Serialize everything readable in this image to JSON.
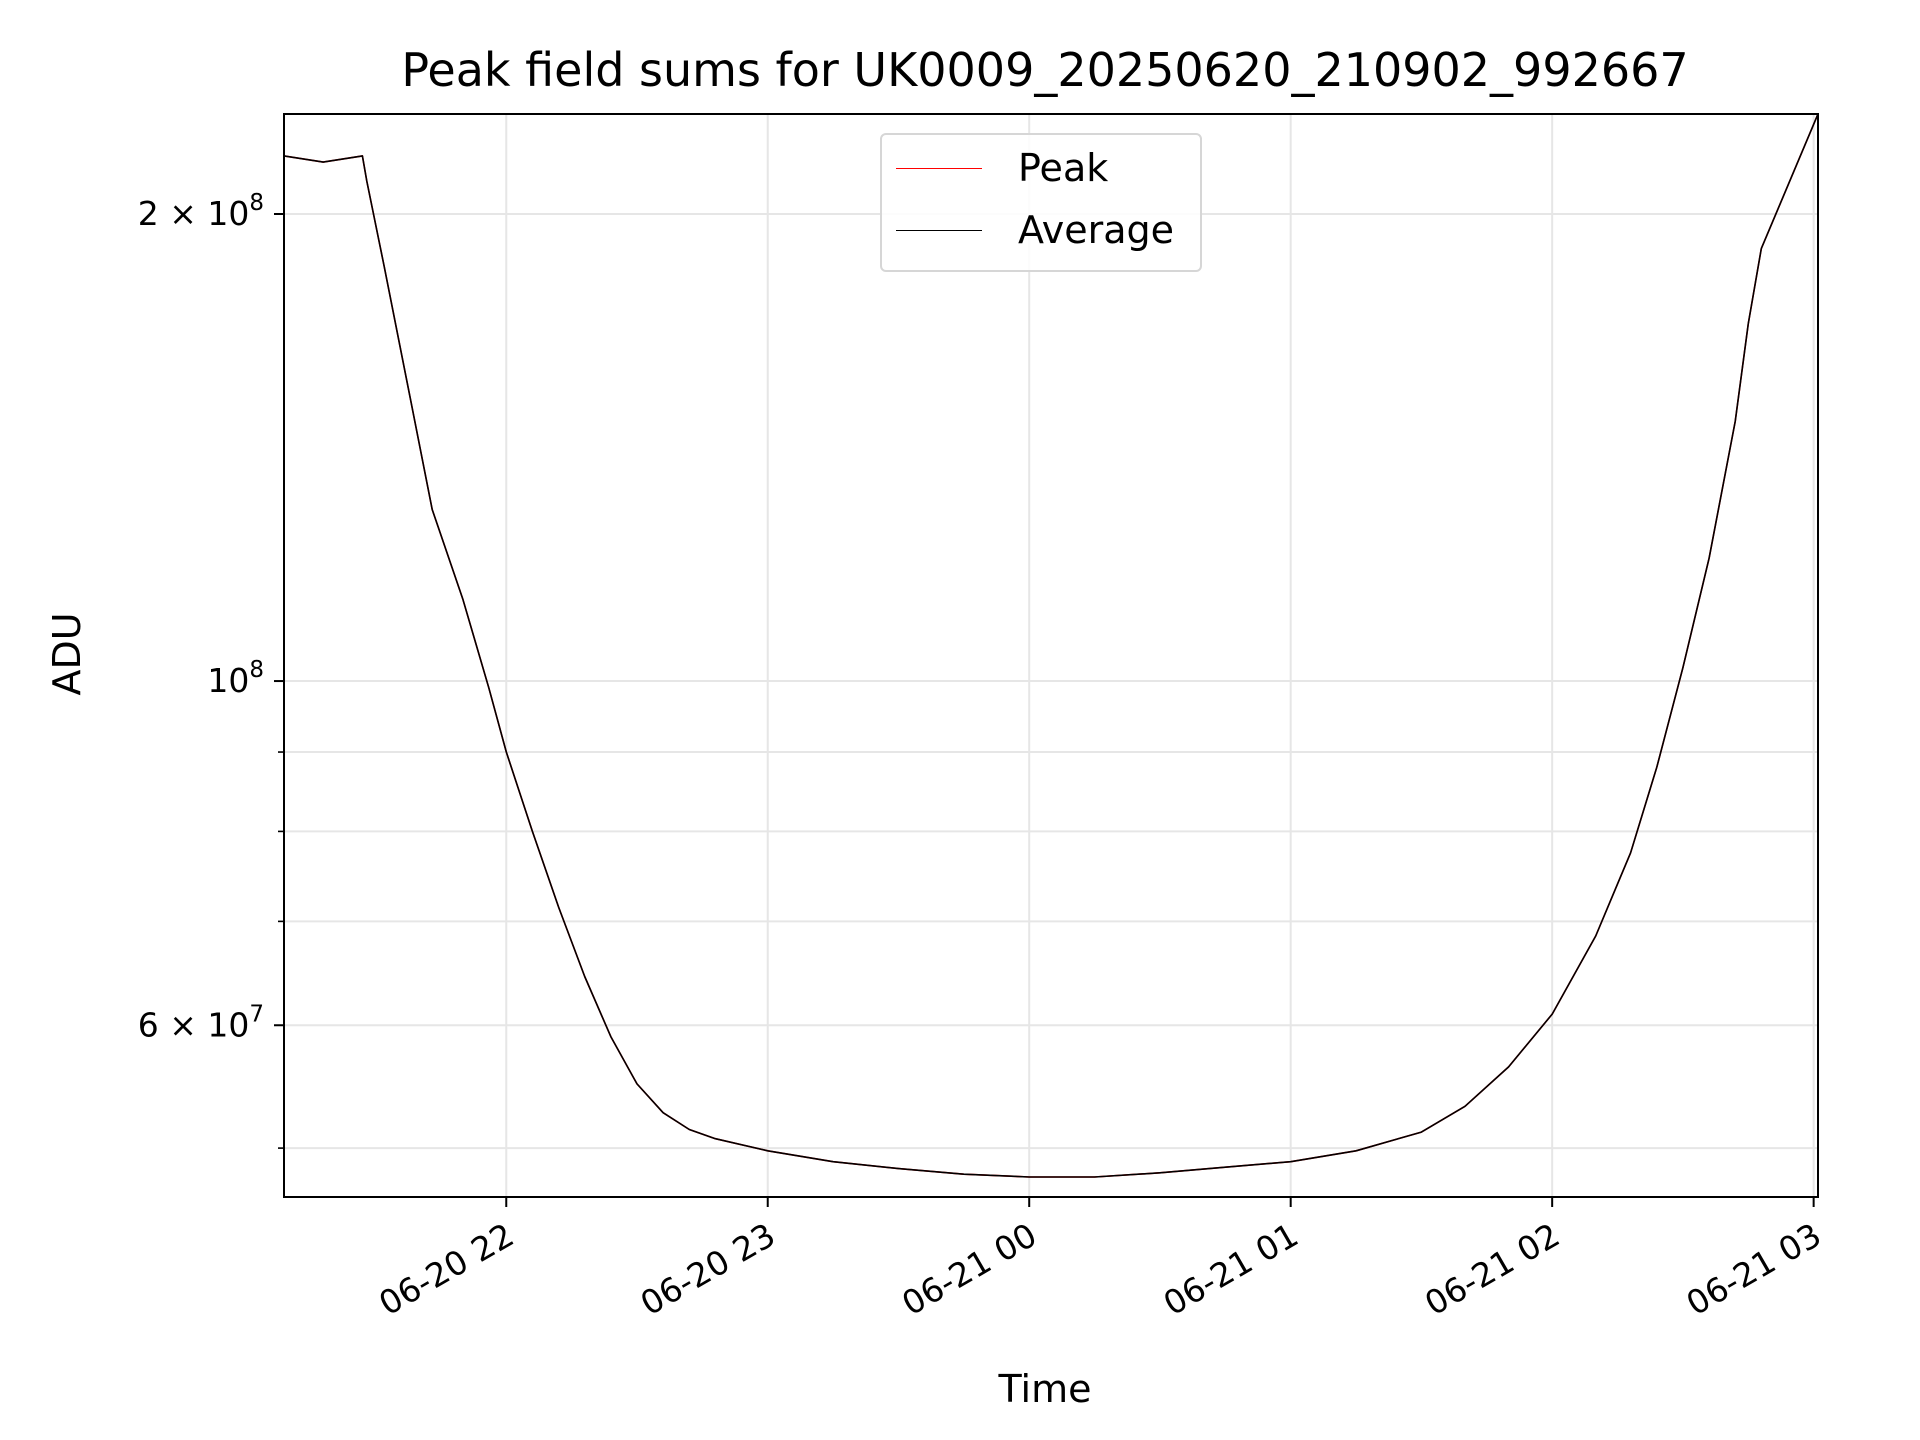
{
  "chart_data": {
    "type": "line",
    "title": "Peak field sums for UK0009_20250620_210902_992667",
    "xlabel": "Time",
    "ylabel": "ADU",
    "x_type": "datetime",
    "x_range": [
      "2025-06-20T21:09:00",
      "2025-06-21T03:01:00"
    ],
    "y_scale": "log",
    "y_range": [
      46500000,
      232000000
    ],
    "grid": true,
    "legend": "upper center",
    "x_ticks": [
      {
        "value": "2025-06-20T22:00:00",
        "label": "06-20 22"
      },
      {
        "value": "2025-06-20T23:00:00",
        "label": "06-20 23"
      },
      {
        "value": "2025-06-21T00:00:00",
        "label": "06-21 00"
      },
      {
        "value": "2025-06-21T01:00:00",
        "label": "06-21 01"
      },
      {
        "value": "2025-06-21T02:00:00",
        "label": "06-21 02"
      },
      {
        "value": "2025-06-21T03:00:00",
        "label": "06-21 03"
      }
    ],
    "y_ticks_major": [
      {
        "value": 60000000,
        "mantissa": "6",
        "exponent": "7"
      },
      {
        "value": 100000000,
        "mantissa": "",
        "exponent": "8"
      },
      {
        "value": 200000000,
        "mantissa": "2",
        "exponent": "8"
      }
    ],
    "y_ticks_minor": [
      50000000,
      70000000,
      80000000,
      90000000
    ],
    "series": [
      {
        "name": "Peak",
        "color": "#ff0000",
        "x": [
          "2025-06-20T21:09:00",
          "2025-06-20T21:18:00",
          "2025-06-20T21:27:00",
          "2025-06-20T21:28:00",
          "2025-06-20T21:32:00",
          "2025-06-20T21:38:00",
          "2025-06-20T21:43:00",
          "2025-06-20T21:50:00",
          "2025-06-20T21:56:00",
          "2025-06-20T22:00:00",
          "2025-06-20T22:06:00",
          "2025-06-20T22:12:00",
          "2025-06-20T22:18:00",
          "2025-06-20T22:24:00",
          "2025-06-20T22:30:00",
          "2025-06-20T22:36:00",
          "2025-06-20T22:42:00",
          "2025-06-20T22:48:00",
          "2025-06-20T23:00:00",
          "2025-06-20T23:15:00",
          "2025-06-20T23:30:00",
          "2025-06-20T23:45:00",
          "2025-06-21T00:00:00",
          "2025-06-21T00:15:00",
          "2025-06-21T00:30:00",
          "2025-06-21T00:45:00",
          "2025-06-21T01:00:00",
          "2025-06-21T01:15:00",
          "2025-06-21T01:30:00",
          "2025-06-21T01:40:00",
          "2025-06-21T01:50:00",
          "2025-06-21T02:00:00",
          "2025-06-21T02:10:00",
          "2025-06-21T02:18:00",
          "2025-06-21T02:24:00",
          "2025-06-21T02:30:00",
          "2025-06-21T02:36:00",
          "2025-06-21T02:42:00",
          "2025-06-21T02:45:00",
          "2025-06-21T02:48:00",
          "2025-06-21T03:01:00"
        ],
        "values": [
          218000000,
          216000000,
          218000000,
          210000000,
          185000000,
          152000000,
          129000000,
          113000000,
          99000000,
          90000000,
          80000000,
          71500000,
          64500000,
          59000000,
          55000000,
          52700000,
          51400000,
          50700000,
          49800000,
          49000000,
          48500000,
          48100000,
          47900000,
          47900000,
          48200000,
          48600000,
          49000000,
          49800000,
          51200000,
          53200000,
          56400000,
          61000000,
          68500000,
          77500000,
          88000000,
          102000000,
          120000000,
          147000000,
          170000000,
          190000000,
          232000000
        ]
      },
      {
        "name": "Average",
        "color": "#000000",
        "x": [
          "2025-06-20T21:09:00",
          "2025-06-20T21:18:00",
          "2025-06-20T21:27:00",
          "2025-06-20T21:28:00",
          "2025-06-20T21:32:00",
          "2025-06-20T21:38:00",
          "2025-06-20T21:43:00",
          "2025-06-20T21:50:00",
          "2025-06-20T21:56:00",
          "2025-06-20T22:00:00",
          "2025-06-20T22:06:00",
          "2025-06-20T22:12:00",
          "2025-06-20T22:18:00",
          "2025-06-20T22:24:00",
          "2025-06-20T22:30:00",
          "2025-06-20T22:36:00",
          "2025-06-20T22:42:00",
          "2025-06-20T22:48:00",
          "2025-06-20T23:00:00",
          "2025-06-20T23:15:00",
          "2025-06-20T23:30:00",
          "2025-06-20T23:45:00",
          "2025-06-21T00:00:00",
          "2025-06-21T00:15:00",
          "2025-06-21T00:30:00",
          "2025-06-21T00:45:00",
          "2025-06-21T01:00:00",
          "2025-06-21T01:15:00",
          "2025-06-21T01:30:00",
          "2025-06-21T01:40:00",
          "2025-06-21T01:50:00",
          "2025-06-21T02:00:00",
          "2025-06-21T02:10:00",
          "2025-06-21T02:18:00",
          "2025-06-21T02:24:00",
          "2025-06-21T02:30:00",
          "2025-06-21T02:36:00",
          "2025-06-21T02:42:00",
          "2025-06-21T02:45:00",
          "2025-06-21T02:48:00",
          "2025-06-21T03:01:00"
        ],
        "values": [
          218000000,
          216000000,
          218000000,
          210000000,
          185000000,
          152000000,
          129000000,
          113000000,
          99000000,
          90000000,
          80000000,
          71500000,
          64500000,
          59000000,
          55000000,
          52700000,
          51400000,
          50700000,
          49800000,
          49000000,
          48500000,
          48100000,
          47900000,
          47900000,
          48200000,
          48600000,
          49000000,
          49800000,
          51200000,
          53200000,
          56400000,
          61000000,
          68500000,
          77500000,
          88000000,
          102000000,
          120000000,
          147000000,
          170000000,
          190000000,
          232000000
        ]
      }
    ]
  }
}
